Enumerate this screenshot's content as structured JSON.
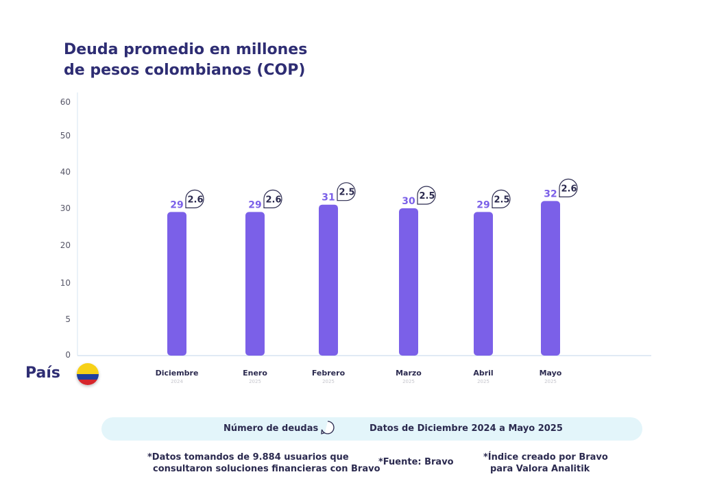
{
  "title_lines": [
    "Deuda promedio en millones",
    "de pesos colombianos (COP)"
  ],
  "country_label": "País",
  "colors": {
    "bar": "#7b60e8",
    "axis": "#d6e4f0",
    "title": "#2e2d73",
    "legend_bg": "#e3f5fa"
  },
  "icons": {
    "flag": "colombia-flag-icon",
    "bubble": "speech-bubble-icon"
  },
  "chart_data": {
    "type": "bar",
    "title": "Deuda promedio en millones de pesos colombianos (COP)",
    "categories": [
      "Diciembre",
      "Enero",
      "Febrero",
      "Marzo",
      "Abril",
      "Mayo"
    ],
    "years": [
      "2024",
      "2025",
      "2025",
      "2025",
      "2025",
      "2025"
    ],
    "values": [
      29,
      29,
      31,
      30,
      29,
      32
    ],
    "debt_counts": [
      "2.6",
      "2.6",
      "2.5",
      "2.5",
      "2.5",
      "2.6"
    ],
    "y_ticks": [
      0,
      5,
      10,
      20,
      30,
      40,
      50,
      60
    ],
    "ylim": [
      0,
      60
    ],
    "grid": false
  },
  "legend": {
    "count_label": "Número de deudas",
    "range_label": "Datos de Diciembre 2024 a Mayo 2025"
  },
  "notes": {
    "data_lines": [
      "*Datos tomandos de 9.884 usuarios que",
      "consultaron soluciones financieras con Bravo"
    ],
    "source": "*Fuente: Bravo",
    "index_lines": [
      "*Índice creado por Bravo",
      "para Valora Analitik"
    ]
  }
}
